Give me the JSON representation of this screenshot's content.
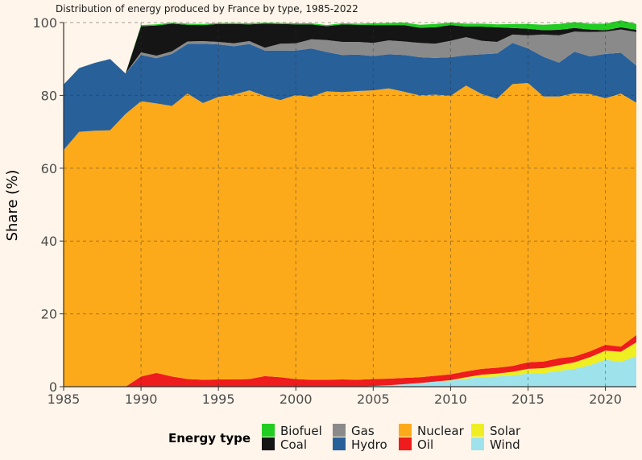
{
  "chart_data": {
    "type": "area",
    "stacked": true,
    "normalized_percent": true,
    "title": "Distribution of energy produced by France by type, 1985-2022",
    "xlabel": "",
    "ylabel": "Share (%)",
    "xlim": [
      1985,
      2022
    ],
    "ylim": [
      0,
      100
    ],
    "x_ticks": [
      1985,
      1990,
      1995,
      2000,
      2005,
      2010,
      2015,
      2020
    ],
    "y_ticks": [
      0,
      20,
      40,
      60,
      80,
      100
    ],
    "grid": true,
    "legend_position": "bottom",
    "legend_title": "Energy type",
    "legend_entries": [
      "Biofuel",
      "Coal",
      "Gas",
      "Hydro",
      "Nuclear",
      "Oil",
      "Solar",
      "Wind"
    ],
    "x": [
      1985,
      1986,
      1987,
      1988,
      1989,
      1990,
      1991,
      1992,
      1993,
      1994,
      1995,
      1996,
      1997,
      1998,
      1999,
      2000,
      2001,
      2002,
      2003,
      2004,
      2005,
      2006,
      2007,
      2008,
      2009,
      2010,
      2011,
      2012,
      2013,
      2014,
      2015,
      2016,
      2017,
      2018,
      2019,
      2020,
      2021,
      2022
    ],
    "series": [
      {
        "name": "Wind",
        "color": "#9ee3ec",
        "values": [
          0,
          0,
          0,
          0,
          0,
          0,
          0,
          0,
          0,
          0,
          0,
          0,
          0,
          0,
          0,
          0,
          0,
          0,
          0,
          0,
          0.2,
          0.4,
          0.7,
          1.0,
          1.4,
          1.7,
          2.2,
          2.6,
          2.8,
          3.1,
          3.6,
          3.7,
          4.3,
          4.9,
          5.9,
          7.4,
          6.8,
          8.4
        ]
      },
      {
        "name": "Solar",
        "color": "#eeee22",
        "values": [
          0,
          0,
          0,
          0,
          0,
          0,
          0,
          0,
          0,
          0,
          0,
          0,
          0,
          0,
          0,
          0,
          0,
          0,
          0,
          0,
          0,
          0,
          0,
          0,
          0,
          0.1,
          0.4,
          0.7,
          0.8,
          1.0,
          1.3,
          1.4,
          1.6,
          1.8,
          2.2,
          2.5,
          2.8,
          3.8
        ]
      },
      {
        "name": "Oil",
        "color": "#ee1c1c",
        "values": [
          0,
          0,
          0,
          0,
          0,
          2.8,
          3.8,
          2.8,
          2.1,
          1.9,
          2.0,
          2.0,
          2.1,
          2.9,
          2.6,
          2.1,
          1.9,
          1.9,
          2.0,
          1.9,
          1.9,
          1.8,
          1.7,
          1.6,
          1.6,
          1.6,
          1.6,
          1.6,
          1.6,
          1.6,
          1.8,
          1.8,
          1.9,
          1.6,
          1.6,
          1.6,
          1.4,
          2.0
        ]
      },
      {
        "name": "Nuclear",
        "color": "#fdaa1a",
        "values": [
          65.0,
          70.0,
          70.3,
          70.4,
          74.9,
          75.6,
          74.0,
          74.3,
          78.4,
          76.0,
          77.6,
          78.2,
          79.3,
          76.9,
          76.1,
          78.0,
          77.7,
          79.2,
          78.9,
          79.3,
          79.3,
          79.7,
          78.6,
          77.4,
          77.2,
          76.5,
          78.5,
          75.5,
          73.9,
          77.4,
          76.7,
          72.8,
          71.9,
          72.3,
          70.7,
          67.7,
          69.5,
          63.8
        ]
      },
      {
        "name": "Hydro",
        "color": "#28609a",
        "values": [
          18.0,
          17.5,
          18.6,
          19.6,
          11.1,
          12.7,
          12.4,
          14.3,
          13.6,
          16.3,
          14.4,
          13.3,
          12.7,
          12.5,
          13.6,
          12.2,
          13.3,
          10.8,
          10.2,
          10.0,
          9.4,
          9.4,
          10.1,
          10.5,
          10.1,
          10.6,
          8.3,
          10.9,
          12.4,
          11.3,
          9.5,
          10.9,
          9.3,
          11.4,
          10.3,
          12.2,
          11.2,
          10.2
        ]
      },
      {
        "name": "Gas",
        "color": "#8a8a8a",
        "values": [
          0,
          0,
          0,
          0,
          0,
          0.7,
          0.7,
          0.7,
          0.7,
          0.7,
          0.7,
          0.8,
          0.8,
          0.8,
          1.9,
          2.0,
          2.5,
          3.3,
          3.6,
          3.5,
          3.6,
          3.8,
          3.7,
          3.9,
          3.9,
          4.5,
          5.0,
          3.7,
          3.2,
          2.3,
          3.6,
          6.1,
          7.5,
          5.5,
          6.7,
          6.1,
          6.4,
          9.2
        ]
      },
      {
        "name": "Coal",
        "color": "#151515",
        "values": [
          0,
          0,
          0,
          0,
          0,
          7.2,
          8.3,
          7.6,
          4.6,
          4.4,
          4.9,
          5.3,
          4.6,
          6.6,
          5.4,
          5.2,
          4.1,
          3.8,
          4.8,
          4.7,
          4.9,
          4.2,
          4.5,
          4.2,
          4.5,
          4.3,
          2.9,
          3.9,
          4.0,
          1.8,
          1.8,
          1.2,
          1.5,
          1.0,
          0.7,
          0.4,
          0.6,
          0.6
        ]
      },
      {
        "name": "Biofuel",
        "color": "#22cc22",
        "values": [
          0,
          0,
          0,
          0,
          0,
          0.3,
          0.3,
          0.3,
          0.3,
          0.3,
          0.3,
          0.3,
          0.3,
          0.3,
          0.3,
          0.3,
          0.3,
          0.3,
          0.3,
          0.3,
          0.5,
          0.6,
          0.7,
          0.8,
          0.9,
          0.7,
          0.8,
          0.8,
          0.8,
          1.1,
          1.3,
          1.5,
          1.6,
          1.6,
          1.6,
          1.8,
          1.9,
          1.6
        ]
      }
    ]
  }
}
